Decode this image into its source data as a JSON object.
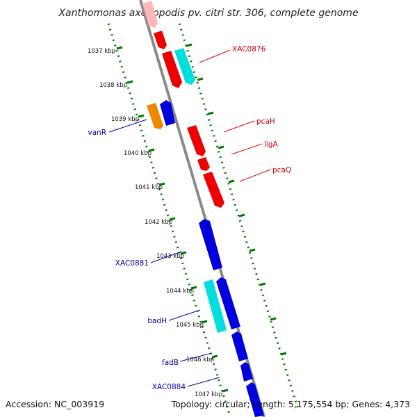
{
  "title": "Xanthomonas axonopodis pv. citri str. 306, complete genome",
  "footer": {
    "accession": "Accession: NC_003919",
    "topology": "Topology: circular; Length: 5,175,554 bp; Genes: 4,373"
  },
  "colors": {
    "forward": "#ee0000",
    "reverse": "#0000dd",
    "rna": "#00dede",
    "other": "#ee8800",
    "faded": "#ffb6b6",
    "backbone": "#8a8a8a",
    "ticks": "#007700"
  },
  "kbp_labels": [
    "1037 kbp",
    "1038 kbp",
    "1039 kbp",
    "1040 kbp",
    "1041 kbp",
    "1042 kbp",
    "1043 kbp",
    "1044 kbp",
    "1045 kbp",
    "1046 kbp",
    "1047 kbp"
  ],
  "gene_labels": {
    "XAC0876": "XAC0876",
    "pcaH": "pcaH",
    "ligA": "ligA",
    "pcaQ": "pcaQ",
    "vanR": "vanR",
    "XAC0881": "XAC0881",
    "badH": "badH",
    "fadB": "fadB",
    "XAC0884": "XAC0884"
  }
}
